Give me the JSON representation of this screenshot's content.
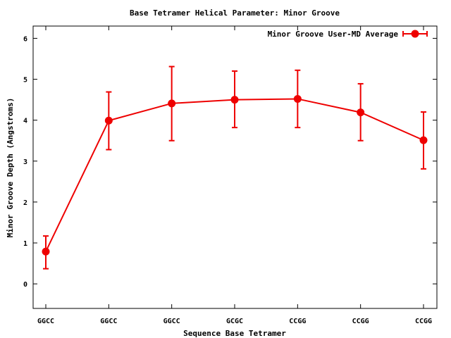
{
  "chart_data": {
    "type": "line",
    "title": "Base Tetramer Helical Parameter: Minor Groove",
    "xlabel": "Sequence Base Tetramer",
    "ylabel": "Minor Groove Depth (Angstroms)",
    "categories": [
      "GGCC",
      "GGCC",
      "GGCC",
      "GCGC",
      "CCGG",
      "CCGG",
      "CCGG"
    ],
    "ylim": [
      -0.6,
      6.3
    ],
    "yticks": [
      0,
      1,
      2,
      3,
      4,
      5,
      6
    ],
    "grid": false,
    "legend_position": "top-right",
    "series": [
      {
        "name": "Minor Groove User-MD Average",
        "color": "#ee0000",
        "marker": "circle",
        "values": [
          0.79,
          3.99,
          4.41,
          4.5,
          4.52,
          4.19,
          3.51
        ],
        "error_low": [
          0.37,
          3.28,
          3.5,
          3.82,
          3.82,
          3.5,
          2.81
        ],
        "error_high": [
          1.17,
          4.69,
          5.31,
          5.2,
          5.22,
          4.89,
          4.2
        ]
      }
    ]
  }
}
